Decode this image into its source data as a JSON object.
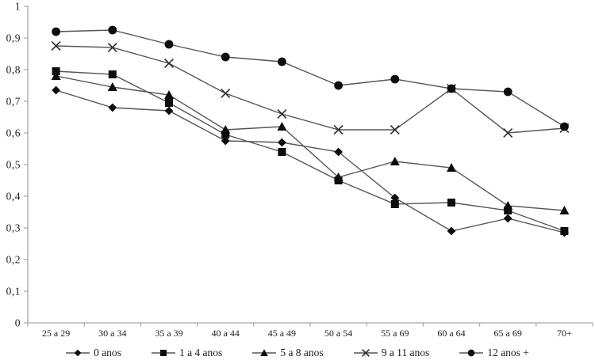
{
  "chart_data": {
    "type": "line",
    "title": "",
    "xlabel": "",
    "ylabel": "",
    "grid": false,
    "legend_position": "bottom",
    "ylim": [
      0,
      1
    ],
    "ytick_step": 0.1,
    "ytick_labels": [
      "0",
      "0,1",
      "0,2",
      "0,3",
      "0,4",
      "0,5",
      "0,6",
      "0,7",
      "0,8",
      "0,9",
      "1"
    ],
    "categories": [
      "25 a 29",
      "30 a 34",
      "35 a 39",
      "40 a 44",
      "45 a 49",
      "50 a 54",
      "55 a 69",
      "60 a 64",
      "65 a 69",
      "70+"
    ],
    "series": [
      {
        "name": "0 anos",
        "marker": "diamond",
        "values": [
          0.735,
          0.68,
          0.67,
          0.575,
          0.57,
          0.54,
          0.395,
          0.29,
          0.33,
          0.285
        ]
      },
      {
        "name": "1 a 4 anos",
        "marker": "square",
        "values": [
          0.795,
          0.785,
          0.695,
          0.595,
          0.54,
          0.45,
          0.375,
          0.38,
          0.355,
          0.29
        ]
      },
      {
        "name": "5 a 8 anos",
        "marker": "triangle",
        "values": [
          0.78,
          0.745,
          0.72,
          0.61,
          0.62,
          0.46,
          0.51,
          0.49,
          0.37,
          0.355
        ]
      },
      {
        "name": "9 a 11 anos",
        "marker": "x",
        "values": [
          0.875,
          0.87,
          0.82,
          0.725,
          0.66,
          0.61,
          0.61,
          0.74,
          0.6,
          0.615
        ]
      },
      {
        "name": "12 anos +",
        "marker": "circle",
        "values": [
          0.92,
          0.925,
          0.88,
          0.84,
          0.825,
          0.75,
          0.77,
          0.74,
          0.73,
          0.62
        ]
      }
    ],
    "colors": {
      "background": "#ffffff",
      "axis": "#a6a6a6",
      "line": "#565656",
      "marker": "#0d0d0d",
      "text": "#1c1c1c"
    }
  }
}
